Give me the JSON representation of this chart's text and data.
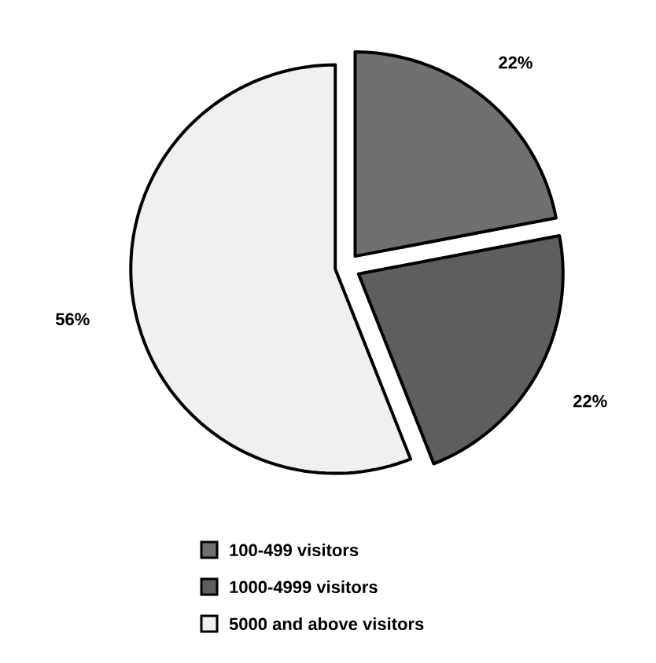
{
  "chart_data": {
    "type": "pie",
    "categories": [
      "100-499 visitors",
      "1000-4999 visitors",
      "5000 and above visitors"
    ],
    "values": [
      22,
      22,
      56
    ],
    "colors": [
      "#707070",
      "#5e5e5e",
      "#f0f0f0"
    ],
    "value_labels": [
      "22%",
      "22%",
      "56%"
    ],
    "legend": "bottom"
  }
}
